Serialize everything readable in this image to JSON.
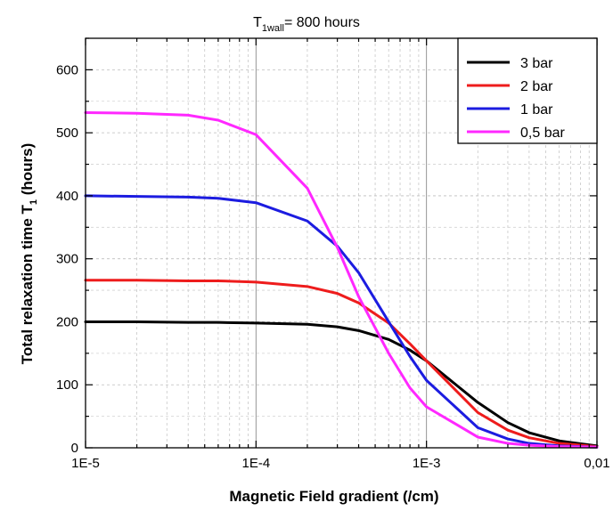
{
  "chart_data": {
    "type": "line",
    "title_main": "T",
    "title_sub": "1wall",
    "title_rest": "= 800 hours",
    "xlabel": "Magnetic Field gradient (/cm)",
    "ylabel_main": "Total relaxation time T",
    "ylabel_sub": "1",
    "ylabel_rest": " (hours)",
    "x_scale": "log",
    "xlim": [
      1e-05,
      0.01
    ],
    "ylim": [
      0,
      650
    ],
    "x_ticks": [
      1e-05,
      0.0001,
      0.001,
      0.01
    ],
    "x_tick_labels": [
      "1E-5",
      "1E-4",
      "1E-3",
      "0,01"
    ],
    "y_ticks": [
      0,
      100,
      200,
      300,
      400,
      500,
      600
    ],
    "y_tick_labels": [
      "0",
      "100",
      "200",
      "300",
      "400",
      "500",
      "600"
    ],
    "grid": true,
    "legend_position": "top-right",
    "series": [
      {
        "name": "3 bar",
        "color": "#000000",
        "x": [
          1e-05,
          2e-05,
          4e-05,
          6e-05,
          0.0001,
          0.0002,
          0.0003,
          0.0004,
          0.0006,
          0.0008,
          0.001,
          0.002,
          0.003,
          0.004,
          0.006,
          0.01
        ],
        "y": [
          200,
          200,
          199,
          199,
          198,
          196,
          192,
          186,
          172,
          155,
          138,
          72,
          40,
          24,
          11,
          3
        ]
      },
      {
        "name": "2 bar",
        "color": "#ee1c1c",
        "x": [
          1e-05,
          2e-05,
          4e-05,
          6e-05,
          0.0001,
          0.0002,
          0.0003,
          0.0004,
          0.0006,
          0.0008,
          0.001,
          0.002,
          0.003,
          0.004,
          0.006,
          0.01
        ],
        "y": [
          266,
          266,
          265,
          265,
          263,
          256,
          245,
          230,
          198,
          165,
          138,
          56,
          28,
          16,
          7,
          2
        ]
      },
      {
        "name": "1 bar",
        "color": "#1c1ce0",
        "x": [
          1e-05,
          2e-05,
          4e-05,
          6e-05,
          0.0001,
          0.0002,
          0.0003,
          0.0004,
          0.0006,
          0.0008,
          0.001,
          0.002,
          0.003,
          0.004,
          0.006,
          0.01
        ],
        "y": [
          400,
          399,
          398,
          396,
          389,
          360,
          320,
          278,
          200,
          145,
          107,
          32,
          14,
          7,
          3,
          1
        ]
      },
      {
        "name": "0,5 bar",
        "color": "#ff28ff",
        "x": [
          1e-05,
          2e-05,
          4e-05,
          6e-05,
          0.0001,
          0.0002,
          0.0003,
          0.0004,
          0.0006,
          0.0008,
          0.001,
          0.002,
          0.003,
          0.004,
          0.006,
          0.01
        ],
        "y": [
          532,
          531,
          528,
          520,
          497,
          412,
          318,
          240,
          150,
          95,
          65,
          17,
          7,
          4,
          2,
          1
        ]
      }
    ]
  }
}
